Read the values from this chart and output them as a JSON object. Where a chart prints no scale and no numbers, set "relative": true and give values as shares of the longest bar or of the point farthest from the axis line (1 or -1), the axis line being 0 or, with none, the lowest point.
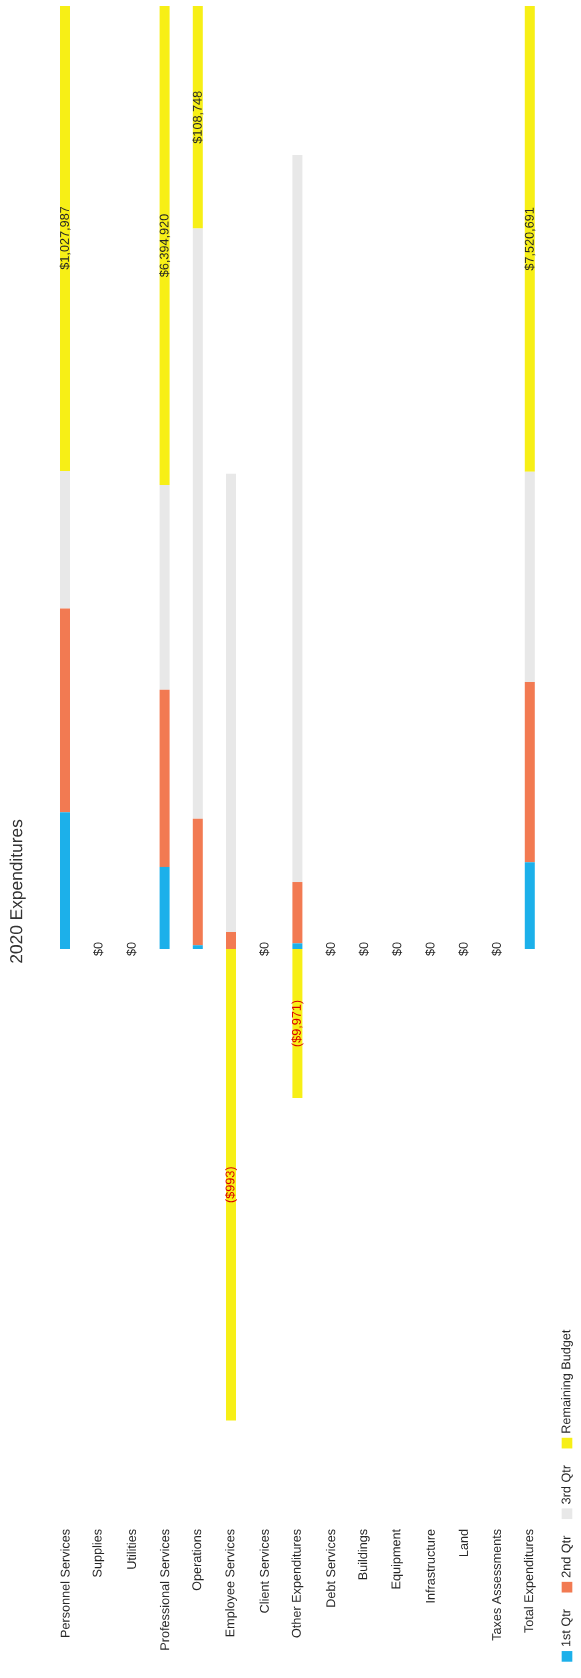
{
  "chart_data": {
    "type": "bar",
    "stacked": true,
    "relative": true,
    "title": "2020 Expenditures",
    "categories": [
      "Personnel Services",
      "Supplies",
      "Utilities",
      "Professional Services",
      "Operations",
      "Employee Services",
      "Client Services",
      "Other Expenditures",
      "Debt Services",
      "Buildings",
      "Equipment",
      "Infrastructure",
      "Land",
      "Taxes Assessments",
      "Total Expenditures"
    ],
    "series": [
      {
        "name": "1st Qtr",
        "color": "#1cb0ea",
        "values": [
          0.145,
          0,
          0,
          0.087,
          0.004,
          0,
          0,
          0.006,
          0,
          0,
          0,
          0,
          0,
          0,
          0.092
        ]
      },
      {
        "name": "2nd Qtr",
        "color": "#f27a52",
        "values": [
          0.216,
          0,
          0,
          0.188,
          0.134,
          0.018,
          0,
          0.065,
          0,
          0,
          0,
          0,
          0,
          0,
          0.191
        ]
      },
      {
        "name": "3rd Qtr",
        "color": "#e8e8e8",
        "values": [
          0.146,
          0,
          0,
          0.217,
          0.626,
          0.486,
          0,
          0.771,
          0,
          0,
          0,
          0,
          0,
          0,
          0.223
        ]
      },
      {
        "name": "Remaining Budget",
        "color": "#f7ef16",
        "values": [
          0.493,
          0,
          0,
          0.508,
          0.236,
          -0.5,
          0,
          -0.158,
          0,
          0,
          0,
          0,
          0,
          0,
          0.494
        ]
      }
    ],
    "annotations": [
      {
        "text": "$1,027,987",
        "x": "Personnel Services",
        "y": 0.754
      },
      {
        "text": "$0",
        "x": "Supplies",
        "y": 0
      },
      {
        "text": "$0",
        "x": "Utilities",
        "y": 0
      },
      {
        "text": "$6,394,920",
        "x": "Professional Services",
        "y": 0.746
      },
      {
        "text": "$108,748",
        "x": "Operations",
        "y": 0.882
      },
      {
        "text": "($993)",
        "x": "Employee Services",
        "y": -0.25
      },
      {
        "text": "$0",
        "x": "Client Services",
        "y": 0
      },
      {
        "text": "($9,971)",
        "x": "Other Expenditures",
        "y": -0.079
      },
      {
        "text": "$0",
        "x": "Debt Services",
        "y": 0
      },
      {
        "text": "$0",
        "x": "Buildings",
        "y": 0
      },
      {
        "text": "$0",
        "x": "Equipment",
        "y": 0
      },
      {
        "text": "$0",
        "x": "Infrastructure",
        "y": 0
      },
      {
        "text": "$0",
        "x": "Land",
        "y": 0
      },
      {
        "text": "$0",
        "x": "Taxes Assessments",
        "y": 0
      },
      {
        "text": "$7,520,691",
        "x": "Total Expenditures",
        "y": 0.753
      }
    ],
    "legend": "right"
  }
}
